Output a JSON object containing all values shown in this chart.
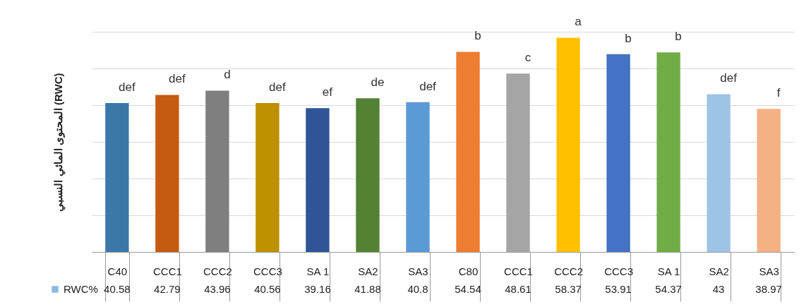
{
  "chart_data": {
    "type": "bar",
    "ylabel": "المحتوى المائي النسبي (RWC)",
    "categories": [
      "C40",
      "CCC1",
      "CCC2",
      "CCC3",
      "SA 1",
      "SA2",
      "SA3",
      "C80",
      "CCC1",
      "CCC2",
      "CCC3",
      "SA 1",
      "SA2",
      "SA3"
    ],
    "series": [
      {
        "name": "RWC%",
        "color": "#5b9bd5",
        "colors": [
          "#3a78a8",
          "#c55a11",
          "#7f7f7f",
          "#bf9000",
          "#2f5597",
          "#548235",
          "#5b9bd5",
          "#ed7d31",
          "#a5a5a5",
          "#ffc000",
          "#4472c4",
          "#70ad47",
          "#9dc3e6",
          "#f4b183"
        ],
        "values": [
          40.58,
          42.79,
          43.96,
          40.56,
          39.16,
          41.88,
          40.8,
          54.54,
          48.61,
          58.37,
          53.91,
          54.37,
          43,
          38.97
        ]
      }
    ],
    "annotations": [
      "def",
      "def",
      "d",
      "def",
      "ef",
      "de",
      "def",
      "b",
      "c",
      "a",
      "b",
      "b",
      "def",
      "f"
    ],
    "ylim": [
      0,
      60
    ],
    "yticks": [
      {
        "value": 0,
        "label": null
      },
      {
        "value": 10,
        "label": null
      },
      {
        "value": 20,
        "label": null
      },
      {
        "value": 30,
        "label": null
      },
      {
        "value": 40,
        "label": null
      },
      {
        "value": 50,
        "label": null
      },
      {
        "value": 60,
        "label": null
      }
    ],
    "tick_labels": "x",
    "grid": "y",
    "data_labels": true
  }
}
